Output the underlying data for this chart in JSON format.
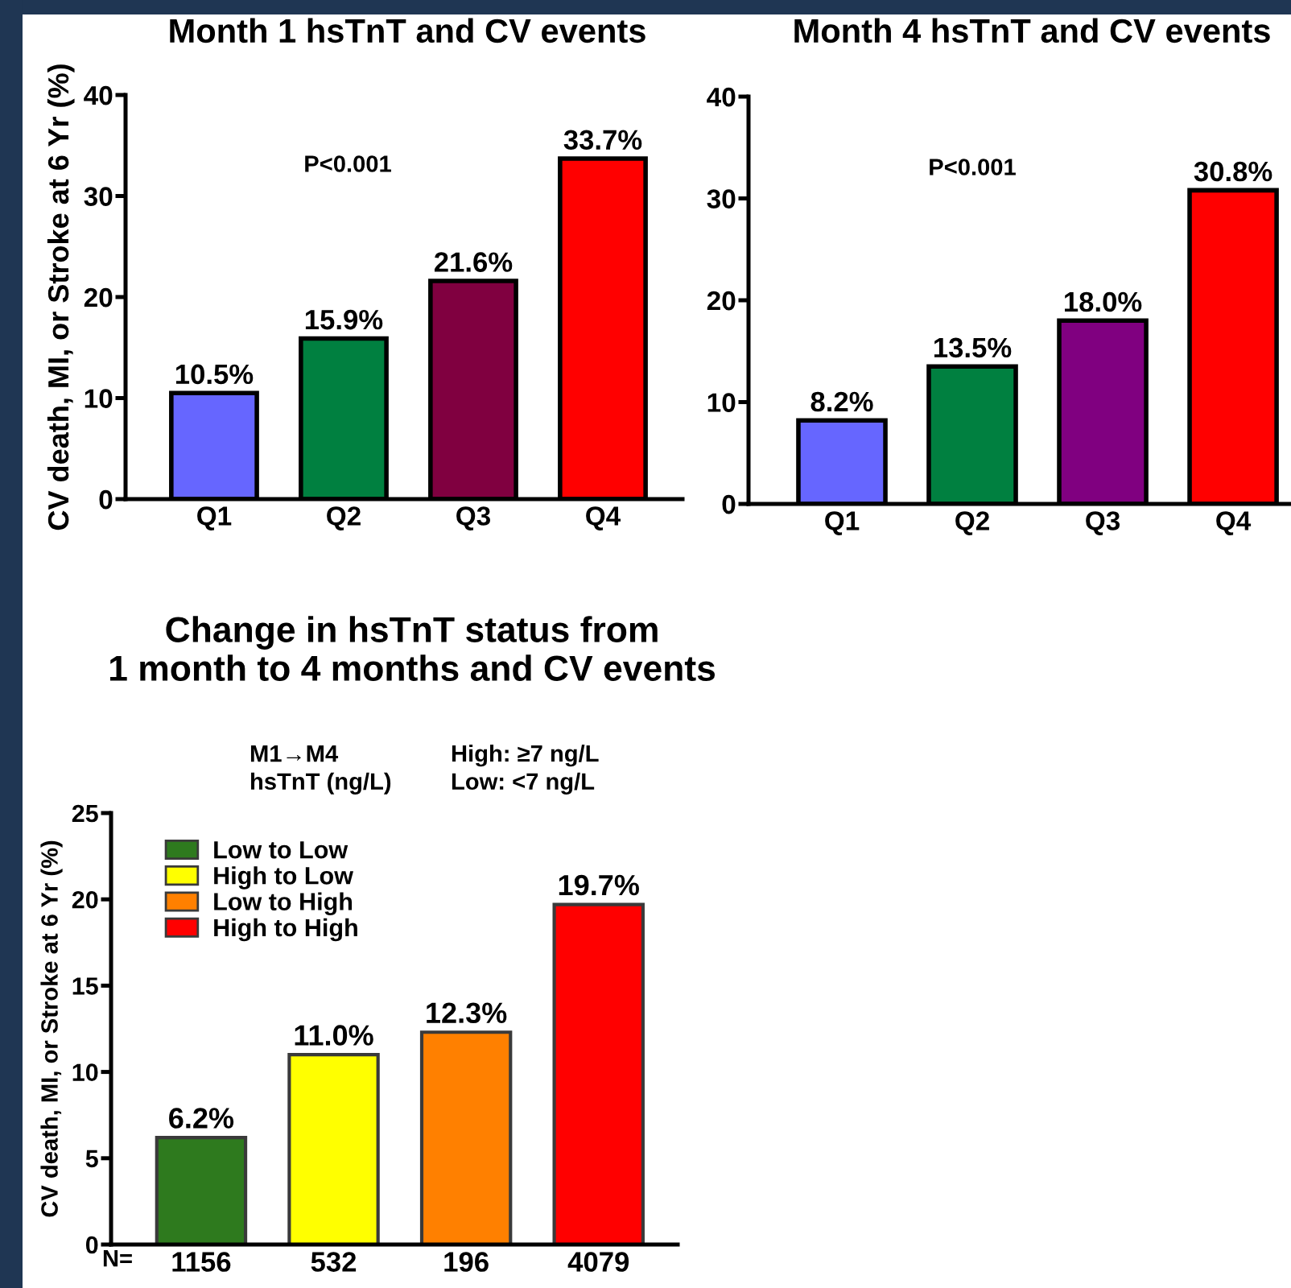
{
  "chart_data": [
    {
      "type": "bar",
      "title": "Month 1 hsTnT and CV events",
      "ylabel": "CV death, MI, or Stroke at 6 Yr (%)",
      "categories": [
        "Q1",
        "Q2",
        "Q3",
        "Q4"
      ],
      "values": [
        10.5,
        15.9,
        21.6,
        33.7
      ],
      "colors": [
        "#6666ff",
        "#008040",
        "#800040",
        "#ff0000"
      ],
      "value_labels": [
        "10.5%",
        "15.9%",
        "21.6%",
        "33.7%"
      ],
      "ylim": [
        0,
        40
      ],
      "yticks": [
        0,
        10,
        20,
        30,
        40
      ],
      "annotations": [
        "P<0.001"
      ]
    },
    {
      "type": "bar",
      "title": "Month 4 hsTnT and CV events",
      "categories": [
        "Q1",
        "Q2",
        "Q3",
        "Q4"
      ],
      "values": [
        8.2,
        13.5,
        18.0,
        30.8
      ],
      "colors": [
        "#6666ff",
        "#008040",
        "#800080",
        "#ff0000"
      ],
      "value_labels": [
        "8.2%",
        "13.5%",
        "18.0%",
        "30.8%"
      ],
      "ylim": [
        0,
        40
      ],
      "yticks": [
        0,
        10,
        20,
        30,
        40
      ],
      "annotations": [
        "P<0.001"
      ]
    },
    {
      "type": "bar",
      "stacked": true,
      "title": "Change in hsTnT status from\n1 month to 4 months and CV events",
      "ylabel": "CV death, MI, or Stroke at 6 Yr (%)",
      "categories": [
        "1156",
        "532",
        "196",
        "4079"
      ],
      "series": [
        {
          "name": "Low to Low",
          "color": "#2e7a1e",
          "values": [
            6.2,
            null,
            null,
            null
          ],
          "value_labels": [
            "6.2%",
            null,
            null,
            null
          ]
        },
        {
          "name": "High to Low",
          "color": "#ffff00",
          "values": [
            null,
            11.0,
            null,
            null
          ],
          "value_labels": [
            null,
            "11.0%",
            null,
            null
          ]
        },
        {
          "name": "Low to High",
          "color": "#ff8000",
          "values": [
            null,
            null,
            12.3,
            null
          ],
          "value_labels": [
            null,
            null,
            "12.3%",
            null
          ]
        },
        {
          "name": "High to High",
          "color": "#ff0000",
          "values": [
            null,
            null,
            null,
            19.7
          ],
          "value_labels": [
            null,
            null,
            null,
            "19.7%"
          ]
        }
      ],
      "ylim": [
        0,
        25
      ],
      "yticks": [
        0,
        5,
        10,
        15,
        20,
        25
      ],
      "legend": "top left",
      "annotations": [
        "M1→M4\nhsTnT (ng/L)",
        "High: ≥7 ng/L\nLow: <7 ng/L",
        "N="
      ]
    }
  ]
}
